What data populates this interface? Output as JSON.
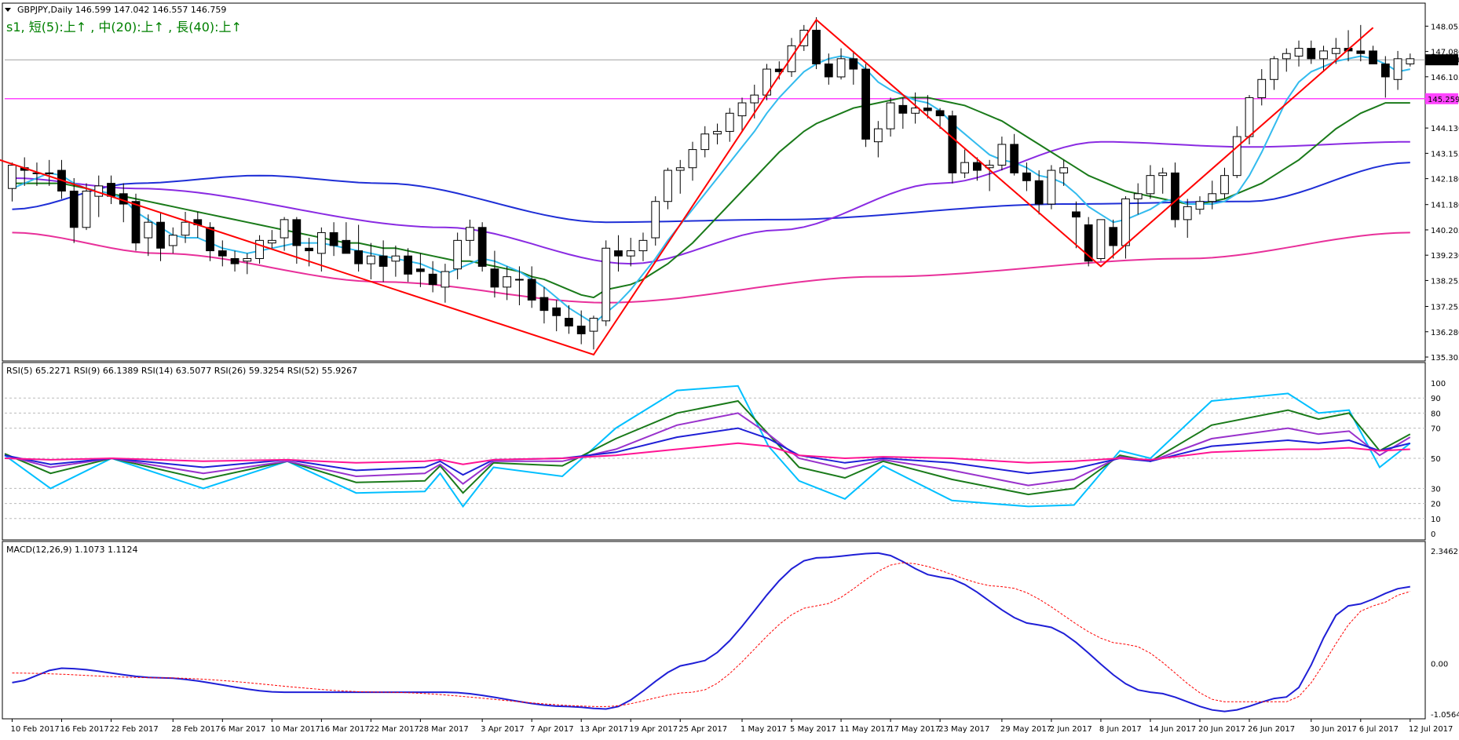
{
  "header": {
    "symbol_line": "GBPJPY,Daily  146.599 147.042 146.557 146.759",
    "status_line": "s1, 短(5):上↑ , 中(20):上↑ , 長(40):上↑"
  },
  "colors": {
    "bull": "#ffffff",
    "bear": "#000000",
    "wick": "#000000",
    "ma_short": "#33bbee",
    "ma_mid": "#1a7a1a",
    "ma_long": "#8a2be2",
    "ma_blue": "#1f2fd6",
    "ma_pink": "#e8309a",
    "trendline": "#ff0000",
    "hline": "#ff44ff",
    "current_price_line": "#a0a0a0",
    "rsi": [
      "#00bfff",
      "#1a7a1a",
      "#9932cc",
      "#1f1fd6",
      "#ff1493"
    ],
    "macd_main": "#1f1fd6",
    "macd_signal": "#ff0000"
  },
  "panels": {
    "rsi": {
      "label": "RSI(5) 65.2271  RSI(9) 66.1389  RSI(14) 63.5077  RSI(26) 59.3254  RSI(52) 55.9267",
      "ticks": [
        "100",
        "90",
        "80",
        "70",
        "50",
        "30",
        "20",
        "10",
        "0"
      ]
    },
    "macd": {
      "label": "MACD(12,26,9) 1.1073 1.1124",
      "ticks": [
        "2.3462",
        "0.00",
        "-1.0564"
      ]
    }
  },
  "chart_data": {
    "type": "candlestick",
    "title": "GBPJPY,Daily",
    "price_ylim": [
      135.305,
      148.7
    ],
    "price_ticks": [
      "148.055",
      "147.080",
      "146.105",
      "145.205",
      "144.130",
      "143.155",
      "142.180",
      "141.180",
      "140.205",
      "139.230",
      "138.255",
      "137.255",
      "136.280",
      "135.305"
    ],
    "current_price": "146.759",
    "hline_price": "145.259",
    "x_labels": [
      "10 Feb 2017",
      "16 Feb 2017",
      "22 Feb 2017",
      "28 Feb 2017",
      "6 Mar 2017",
      "10 Mar 2017",
      "16 Mar 2017",
      "22 Mar 2017",
      "28 Mar 2017",
      "3 Apr 2017",
      "7 Apr 2017",
      "13 Apr 2017",
      "19 Apr 2017",
      "25 Apr 2017",
      "1 May 2017",
      "5 May 2017",
      "11 May 2017",
      "17 May 2017",
      "23 May 2017",
      "29 May 2017",
      "2 Jun 2017",
      "8 Jun 2017",
      "14 Jun 2017",
      "20 Jun 2017",
      "26 Jun 2017",
      "30 Jun 2017",
      "6 Jul 2017",
      "12 Jul 2017"
    ],
    "candles_ohlc": [
      [
        141.8,
        142.8,
        141.3,
        142.7
      ],
      [
        142.6,
        143.0,
        141.9,
        142.5
      ],
      [
        142.4,
        142.8,
        141.9,
        142.4
      ],
      [
        142.4,
        142.9,
        141.9,
        142.4
      ],
      [
        142.5,
        142.9,
        141.4,
        141.7
      ],
      [
        141.7,
        142.2,
        139.7,
        140.3
      ],
      [
        140.3,
        142.0,
        140.2,
        141.7
      ],
      [
        141.5,
        142.3,
        140.7,
        141.9
      ],
      [
        142.0,
        142.3,
        141.2,
        141.5
      ],
      [
        141.6,
        142.0,
        140.5,
        141.2
      ],
      [
        141.3,
        141.6,
        139.4,
        139.7
      ],
      [
        139.9,
        140.8,
        139.2,
        140.5
      ],
      [
        140.5,
        140.9,
        139.0,
        139.5
      ],
      [
        139.6,
        140.3,
        139.3,
        140.0
      ],
      [
        140.0,
        140.9,
        139.7,
        140.5
      ],
      [
        140.6,
        140.9,
        139.9,
        140.4
      ],
      [
        140.3,
        140.5,
        139.0,
        139.4
      ],
      [
        139.4,
        139.8,
        138.8,
        139.2
      ],
      [
        139.1,
        139.4,
        138.6,
        138.9
      ],
      [
        139.0,
        139.3,
        138.5,
        139.1
      ],
      [
        139.1,
        140.0,
        138.9,
        139.8
      ],
      [
        139.7,
        140.2,
        139.5,
        139.8
      ],
      [
        139.9,
        140.7,
        139.4,
        140.6
      ],
      [
        140.6,
        140.7,
        138.9,
        139.6
      ],
      [
        139.5,
        139.9,
        138.8,
        139.4
      ],
      [
        139.3,
        140.3,
        138.6,
        140.1
      ],
      [
        140.1,
        140.5,
        139.2,
        139.6
      ],
      [
        139.8,
        140.5,
        139.4,
        139.3
      ],
      [
        139.4,
        140.4,
        138.6,
        138.9
      ],
      [
        138.9,
        139.7,
        138.3,
        139.2
      ],
      [
        139.2,
        139.8,
        138.2,
        138.8
      ],
      [
        139.0,
        139.6,
        138.4,
        139.2
      ],
      [
        139.2,
        139.5,
        138.2,
        138.5
      ],
      [
        138.7,
        139.3,
        138.0,
        138.6
      ],
      [
        138.5,
        139.0,
        137.8,
        138.1
      ],
      [
        138.0,
        138.9,
        137.4,
        138.6
      ],
      [
        138.7,
        140.1,
        138.3,
        139.8
      ],
      [
        139.8,
        140.6,
        139.2,
        140.3
      ],
      [
        140.3,
        140.5,
        138.6,
        138.8
      ],
      [
        138.7,
        139.4,
        137.6,
        138.0
      ],
      [
        138.0,
        138.8,
        137.5,
        138.4
      ],
      [
        138.3,
        138.8,
        137.3,
        138.3
      ],
      [
        138.3,
        138.8,
        137.2,
        137.5
      ],
      [
        137.6,
        138.0,
        136.6,
        137.1
      ],
      [
        137.2,
        137.5,
        136.3,
        136.9
      ],
      [
        136.8,
        137.3,
        136.2,
        136.5
      ],
      [
        136.5,
        137.1,
        135.8,
        136.2
      ],
      [
        136.3,
        136.9,
        135.6,
        136.8
      ],
      [
        136.7,
        139.8,
        136.5,
        139.5
      ],
      [
        139.4,
        140.0,
        138.6,
        139.2
      ],
      [
        139.2,
        139.9,
        138.8,
        139.4
      ],
      [
        139.4,
        140.1,
        139.0,
        139.8
      ],
      [
        139.9,
        141.5,
        139.6,
        141.3
      ],
      [
        141.3,
        142.6,
        141.0,
        142.5
      ],
      [
        142.5,
        142.9,
        141.6,
        142.6
      ],
      [
        142.6,
        143.6,
        142.1,
        143.3
      ],
      [
        143.3,
        144.2,
        143.0,
        143.9
      ],
      [
        143.9,
        144.3,
        143.5,
        144.0
      ],
      [
        144.0,
        144.9,
        143.6,
        144.7
      ],
      [
        144.6,
        145.3,
        144.0,
        145.1
      ],
      [
        145.1,
        145.8,
        144.5,
        145.4
      ],
      [
        145.4,
        146.6,
        145.2,
        146.4
      ],
      [
        146.4,
        146.7,
        146.0,
        146.3
      ],
      [
        146.3,
        147.6,
        146.1,
        147.3
      ],
      [
        147.3,
        148.1,
        147.1,
        147.9
      ],
      [
        147.9,
        148.4,
        146.4,
        146.6
      ],
      [
        146.6,
        147.0,
        145.8,
        146.1
      ],
      [
        146.1,
        147.2,
        146.0,
        146.8
      ],
      [
        146.8,
        147.1,
        145.8,
        146.4
      ],
      [
        146.4,
        146.6,
        143.4,
        143.7
      ],
      [
        143.6,
        144.4,
        143.0,
        144.1
      ],
      [
        144.1,
        145.3,
        143.8,
        145.1
      ],
      [
        145.0,
        145.3,
        144.1,
        144.7
      ],
      [
        144.7,
        145.5,
        144.3,
        144.9
      ],
      [
        144.9,
        145.4,
        144.5,
        144.8
      ],
      [
        144.8,
        144.9,
        144.1,
        144.6
      ],
      [
        144.6,
        144.8,
        142.0,
        142.4
      ],
      [
        142.4,
        143.3,
        142.2,
        142.8
      ],
      [
        142.8,
        143.0,
        142.1,
        142.5
      ],
      [
        142.6,
        142.9,
        141.7,
        142.7
      ],
      [
        142.7,
        143.8,
        142.5,
        143.5
      ],
      [
        143.5,
        143.9,
        142.3,
        142.4
      ],
      [
        142.4,
        142.8,
        141.7,
        142.1
      ],
      [
        142.1,
        142.5,
        140.8,
        141.2
      ],
      [
        141.2,
        142.7,
        141.0,
        142.5
      ],
      [
        142.4,
        142.9,
        141.9,
        142.6
      ],
      [
        140.9,
        141.3,
        139.5,
        140.7
      ],
      [
        140.4,
        140.7,
        138.8,
        139.0
      ],
      [
        139.1,
        140.6,
        139.0,
        140.6
      ],
      [
        140.3,
        140.6,
        139.1,
        139.6
      ],
      [
        139.6,
        141.5,
        139.1,
        141.4
      ],
      [
        141.4,
        142.0,
        140.8,
        141.6
      ],
      [
        141.6,
        142.7,
        141.4,
        142.3
      ],
      [
        142.3,
        142.6,
        141.6,
        142.4
      ],
      [
        142.4,
        142.8,
        140.3,
        140.6
      ],
      [
        140.6,
        141.4,
        139.9,
        141.1
      ],
      [
        141.0,
        141.5,
        140.8,
        141.3
      ],
      [
        141.3,
        142.1,
        141.0,
        141.6
      ],
      [
        141.6,
        142.6,
        141.4,
        142.3
      ],
      [
        142.3,
        144.2,
        142.2,
        143.8
      ],
      [
        143.8,
        145.4,
        143.5,
        145.3
      ],
      [
        145.3,
        146.4,
        145.0,
        146.0
      ],
      [
        146.0,
        146.9,
        145.6,
        146.8
      ],
      [
        146.8,
        147.2,
        146.3,
        147.0
      ],
      [
        146.9,
        147.5,
        146.5,
        147.2
      ],
      [
        147.2,
        147.5,
        146.6,
        146.8
      ],
      [
        146.8,
        147.3,
        146.3,
        147.1
      ],
      [
        147.0,
        147.6,
        146.6,
        147.2
      ],
      [
        147.2,
        147.9,
        146.7,
        147.1
      ],
      [
        147.1,
        148.1,
        146.7,
        147.0
      ],
      [
        147.1,
        147.3,
        146.8,
        146.6
      ],
      [
        146.6,
        146.9,
        145.3,
        146.1
      ],
      [
        146.0,
        147.1,
        145.6,
        146.8
      ],
      [
        146.6,
        147.0,
        146.5,
        146.8
      ]
    ],
    "ma_short_values": [
      141.8,
      142.0,
      142.2,
      142.4,
      142.3,
      142.0,
      141.8,
      141.7,
      141.6,
      141.4,
      140.9,
      140.6,
      140.3,
      140.0,
      139.9,
      139.9,
      139.7,
      139.5,
      139.4,
      139.3,
      139.4,
      139.5,
      139.6,
      139.7,
      139.7,
      139.7,
      139.6,
      139.5,
      139.4,
      139.3,
      139.2,
      139.1,
      139.0,
      138.9,
      138.7,
      138.5,
      138.7,
      138.9,
      139.1,
      139.0,
      138.8,
      138.6,
      138.3,
      138.0,
      137.6,
      137.2,
      136.9,
      136.6,
      137.0,
      137.4,
      137.9,
      138.5,
      139.1,
      139.8,
      140.4,
      141.0,
      141.6,
      142.2,
      142.8,
      143.4,
      144.0,
      144.7,
      145.3,
      145.8,
      146.3,
      146.6,
      146.8,
      146.9,
      146.8,
      146.4,
      145.9,
      145.6,
      145.4,
      145.2,
      145.1,
      144.8,
      144.3,
      143.9,
      143.5,
      143.1,
      142.9,
      142.8,
      142.6,
      142.3,
      142.2,
      142.0,
      141.6,
      141.1,
      140.8,
      140.5,
      140.6,
      140.8,
      141.0,
      141.3,
      141.4,
      141.2,
      141.2,
      141.2,
      141.3,
      141.6,
      142.3,
      143.2,
      144.2,
      145.2,
      145.9,
      146.3,
      146.5,
      146.7,
      146.8,
      146.9,
      146.8,
      146.6,
      146.3,
      146.4,
      146.5
    ],
    "ma_mid_values": [
      142.0,
      142.0,
      142.0,
      142.0,
      142.0,
      141.9,
      141.8,
      141.7,
      141.6,
      141.5,
      141.4,
      141.3,
      141.2,
      141.1,
      141.0,
      140.9,
      140.8,
      140.7,
      140.6,
      140.5,
      140.4,
      140.3,
      140.2,
      140.1,
      140.0,
      139.9,
      139.8,
      139.7,
      139.7,
      139.6,
      139.5,
      139.5,
      139.4,
      139.3,
      139.2,
      139.1,
      139.0,
      139.0,
      138.9,
      138.8,
      138.7,
      138.6,
      138.4,
      138.3,
      138.1,
      137.9,
      137.7,
      137.6,
      137.9,
      138.0,
      138.1,
      138.3,
      138.6,
      138.9,
      139.3,
      139.7,
      140.2,
      140.7,
      141.2,
      141.7,
      142.2,
      142.7,
      143.2,
      143.6,
      144.0,
      144.3,
      144.5,
      144.7,
      144.9,
      145.0,
      145.1,
      145.2,
      145.3,
      145.3,
      145.3,
      145.2,
      145.1,
      145.0,
      144.8,
      144.6,
      144.4,
      144.1,
      143.8,
      143.5,
      143.2,
      142.9,
      142.6,
      142.3,
      142.1,
      141.9,
      141.7,
      141.6,
      141.5,
      141.4,
      141.3,
      141.2,
      141.2,
      141.3,
      141.4,
      141.6,
      141.8,
      142.0,
      142.3,
      142.6,
      142.9,
      143.3,
      143.7,
      144.1,
      144.4,
      144.7,
      144.9,
      145.1
    ]
  }
}
